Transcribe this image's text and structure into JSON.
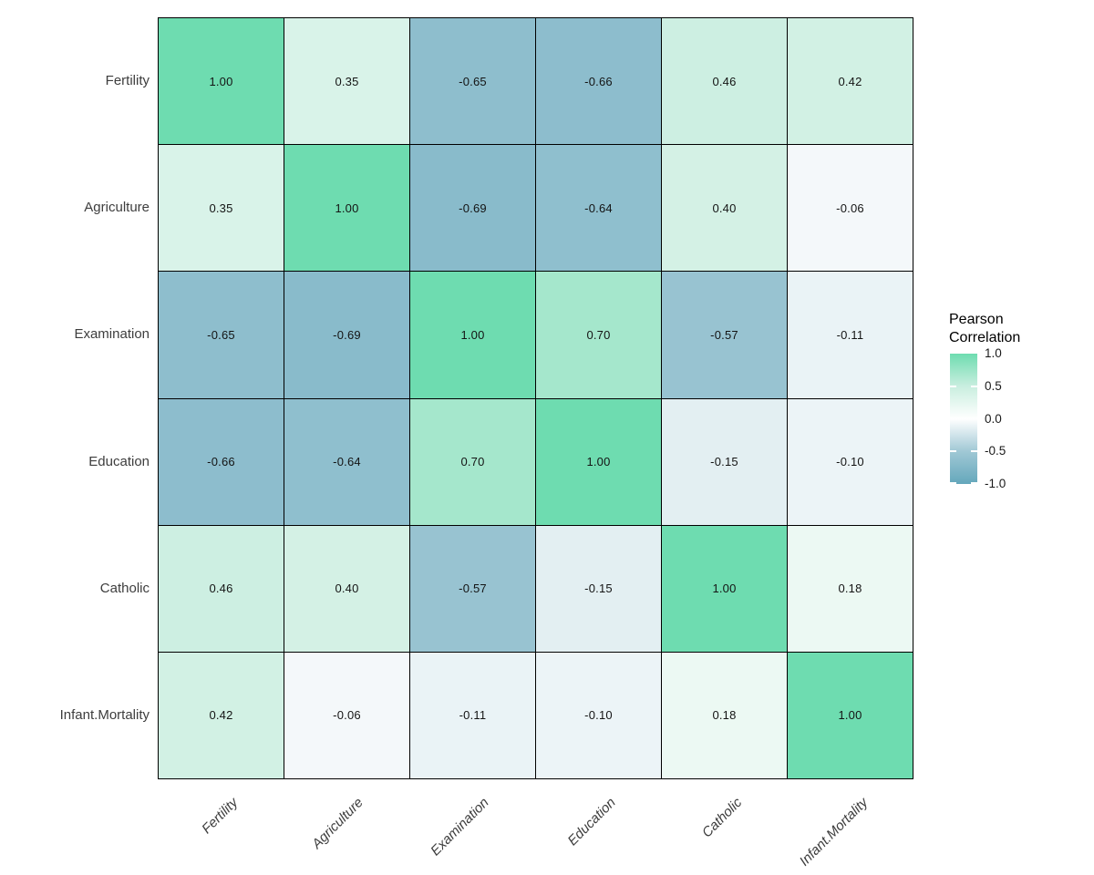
{
  "chart_data": {
    "type": "heatmap",
    "title": "",
    "x_categories": [
      "Fertility",
      "Agriculture",
      "Examination",
      "Education",
      "Catholic",
      "Infant.Mortality"
    ],
    "y_categories": [
      "Fertility",
      "Agriculture",
      "Examination",
      "Education",
      "Catholic",
      "Infant.Mortality"
    ],
    "matrix": [
      [
        1.0,
        0.35,
        -0.65,
        -0.66,
        0.46,
        0.42
      ],
      [
        0.35,
        1.0,
        -0.69,
        -0.64,
        0.4,
        -0.06
      ],
      [
        -0.65,
        -0.69,
        1.0,
        0.7,
        -0.57,
        -0.11
      ],
      [
        -0.66,
        -0.64,
        0.7,
        1.0,
        -0.15,
        -0.1
      ],
      [
        0.46,
        0.4,
        -0.57,
        -0.15,
        1.0,
        0.18
      ],
      [
        0.42,
        -0.06,
        -0.11,
        -0.1,
        0.18,
        1.0
      ]
    ],
    "cell_label_decimals": 2,
    "legend": {
      "title": "Pearson\nCorrelation",
      "tick_labels": [
        "1.0",
        "0.5",
        "0.0",
        "-0.5",
        "-1.0"
      ],
      "tick_values": [
        1.0,
        0.5,
        0.0,
        -0.5,
        -1.0
      ],
      "bar_tick_values": [
        0.5,
        -0.5,
        -1.0
      ],
      "range": [
        -1.0,
        1.0
      ],
      "position": "right"
    },
    "colors": {
      "high": "#6EDCB0",
      "mid_high": "#C9EEDF",
      "mid": "#FFFFFF",
      "mid_low": "#A0C8D5",
      "low": "#64A7BB",
      "grid_line": "#000000",
      "cell_text": "#141414",
      "axis_text": "#3D3D3D",
      "legend_title_text": "#000000",
      "background": "#FFFFFF"
    },
    "layout_hints": {
      "grid_on": false,
      "cell_borders": true,
      "x_label_angle_deg": 45,
      "x_label_style": "italic"
    }
  }
}
